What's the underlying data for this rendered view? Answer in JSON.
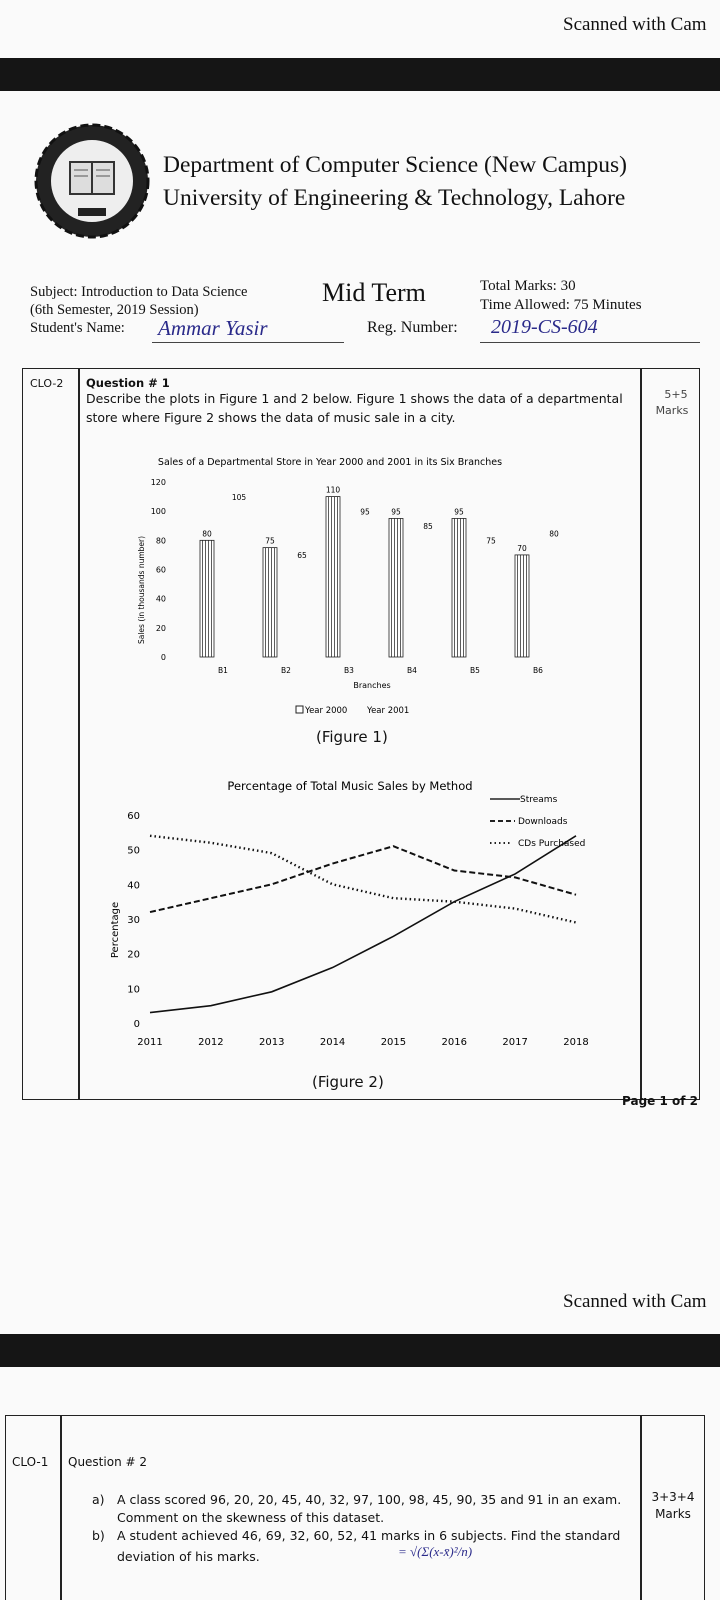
{
  "scanner_label": "Scanned with Cam",
  "header": {
    "department": "Department of Computer Science (New Campus)",
    "university": "University of Engineering & Technology, Lahore",
    "logo_text": "UNIVERSITY OF ENGINEERING AND TECHNOLOGY LAHORE"
  },
  "exam_info": {
    "subject": "Subject: Introduction to Data Science",
    "semester": "(6th Semester, 2019 Session)",
    "student_label": "Student's Name:",
    "student_name": "Ammar Yasir",
    "exam_type": "Mid Term",
    "total_marks": "Total Marks: 30",
    "time_allowed": "Time Allowed: 75 Minutes",
    "reg_label": "Reg. Number:",
    "reg_number": "2019-CS-604"
  },
  "question1": {
    "clo": "CLO-2",
    "title": "Question # 1",
    "text_line1": "Describe the plots in Figure 1 and 2 below. Figure 1 shows the data of a departmental",
    "text_line2": "store where Figure 2 shows the data of music sale in a city.",
    "marks_value": "5+5",
    "marks_label": "Marks",
    "figure1_caption": "(Figure 1)",
    "figure2_caption": "(Figure 2)"
  },
  "page_number": "Page 1 of 2",
  "question2": {
    "clo": "CLO-1",
    "title": "Question # 2",
    "part_a_label": "a)",
    "part_a_line1": "A class scored 96, 20, 20, 45, 40, 32, 97, 100, 98, 45, 90, 35 and 91 in an exam.",
    "part_a_line2": "Comment on the skewness of this dataset.",
    "part_b_label": "b)",
    "part_b_line1": "A student achieved 46, 69, 32, 60, 52, 41 marks in 6 subjects. Find the standard",
    "part_b_line2": "deviation of his marks.",
    "annotation": "= √(Σ(x-x̄)²/n)",
    "marks_value": "3+3+4",
    "marks_label": "Marks"
  },
  "chart_data": [
    {
      "type": "bar",
      "title": "Sales of a Departmental Store in Year 2000 and 2001 in its Six Branches",
      "xlabel": "Branches",
      "ylabel": "Sales (in thousands number)",
      "categories": [
        "B1",
        "B2",
        "B3",
        "B4",
        "B5",
        "B6"
      ],
      "series": [
        {
          "name": "Year 2000",
          "values": [
            80,
            75,
            110,
            95,
            95,
            70
          ]
        },
        {
          "name": "Year 2001",
          "values": [
            105,
            65,
            95,
            85,
            75,
            80
          ]
        }
      ],
      "yticks": [
        0,
        20,
        40,
        60,
        80,
        100,
        120
      ],
      "ylim": [
        0,
        120
      ]
    },
    {
      "type": "line",
      "title": "Percentage of Total Music Sales by Method",
      "xlabel": "",
      "ylabel": "Percentage",
      "x": [
        2011,
        2012,
        2013,
        2014,
        2015,
        2016,
        2017,
        2018
      ],
      "series": [
        {
          "name": "Streams",
          "style": "solid",
          "values": [
            3,
            5,
            9,
            16,
            25,
            35,
            43,
            54
          ]
        },
        {
          "name": "Downloads",
          "style": "dashed",
          "values": [
            32,
            36,
            40,
            46,
            51,
            44,
            42,
            37
          ]
        },
        {
          "name": "CDs Purchased",
          "style": "dotted",
          "values": [
            54,
            52,
            49,
            40,
            36,
            35,
            33,
            29
          ]
        }
      ],
      "yticks": [
        0,
        10,
        20,
        30,
        40,
        50,
        60
      ],
      "ylim": [
        0,
        60
      ]
    }
  ]
}
